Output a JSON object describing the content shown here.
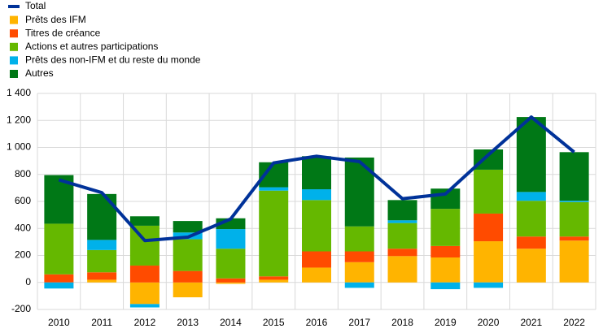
{
  "chart_data": {
    "type": "bar",
    "stacked": true,
    "categories": [
      "2010",
      "2011",
      "2012",
      "2013",
      "2014",
      "2015",
      "2016",
      "2017",
      "2018",
      "2019",
      "2020",
      "2021",
      "2022"
    ],
    "total": {
      "name": "Total",
      "color": "#003299",
      "values": [
        760,
        665,
        310,
        335,
        470,
        885,
        935,
        895,
        620,
        655,
        945,
        1225,
        965
      ]
    },
    "series": [
      {
        "name": "Prêts des IFM",
        "color": "#FFB400",
        "values": [
          0,
          20,
          -160,
          -110,
          -10,
          20,
          110,
          150,
          195,
          185,
          305,
          250,
          310
        ]
      },
      {
        "name": "Titres de créance",
        "color": "#FF4B00",
        "values": [
          60,
          55,
          125,
          85,
          30,
          25,
          120,
          80,
          55,
          85,
          205,
          90,
          30
        ]
      },
      {
        "name": "Actions et autres participations",
        "color": "#65B800",
        "values": [
          375,
          165,
          295,
          235,
          220,
          635,
          380,
          185,
          190,
          275,
          325,
          265,
          255
        ]
      },
      {
        "name": "Prêts des non-IFM et du reste du monde",
        "color": "#00B1EA",
        "values": [
          -45,
          75,
          -25,
          50,
          145,
          25,
          80,
          -40,
          20,
          -50,
          -40,
          65,
          10
        ]
      },
      {
        "name": "Autres",
        "color": "#007816",
        "values": [
          360,
          340,
          70,
          85,
          80,
          185,
          245,
          510,
          150,
          150,
          150,
          555,
          360
        ]
      }
    ],
    "ylim": [
      -200,
      1400
    ],
    "yticks": [
      -200,
      0,
      200,
      400,
      600,
      800,
      {
        "value": 1000,
        "label": "1 000"
      },
      {
        "value": 1200,
        "label": "1 200"
      },
      {
        "value": 1400,
        "label": "1 400"
      }
    ],
    "grid": true
  }
}
